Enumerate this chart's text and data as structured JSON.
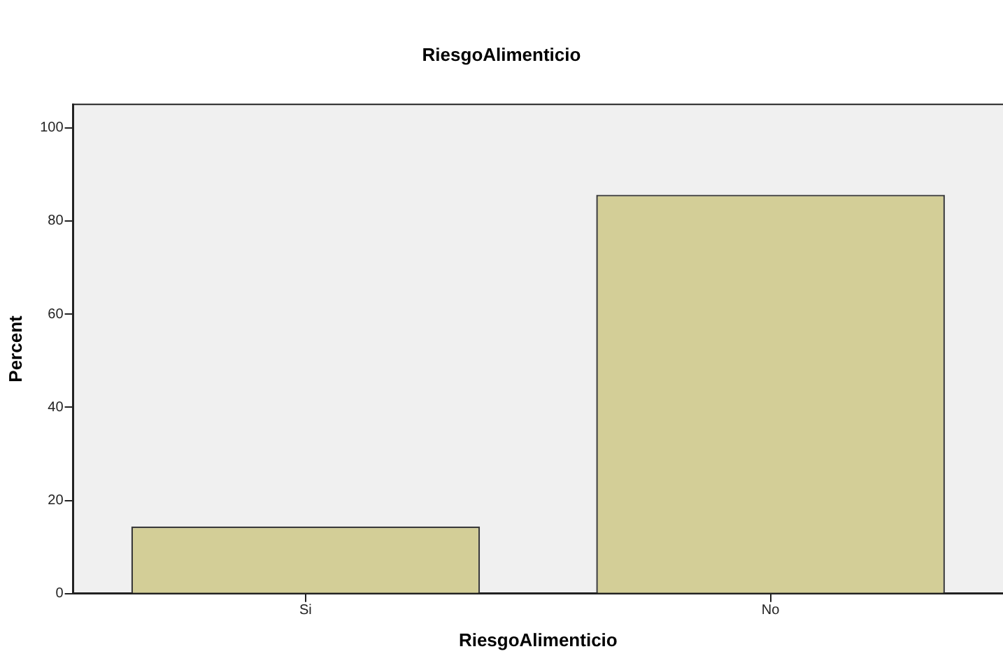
{
  "chart_data": {
    "type": "bar",
    "title": "RiesgoAlimenticio",
    "xlabel": "RiesgoAlimenticio",
    "ylabel": "Percent",
    "categories": [
      "Si",
      "No"
    ],
    "values": [
      14.4,
      85.6
    ],
    "color": "#d3ce97",
    "ylim": [
      0,
      105
    ],
    "yticks": [
      0,
      20,
      40,
      60,
      80,
      100
    ]
  }
}
